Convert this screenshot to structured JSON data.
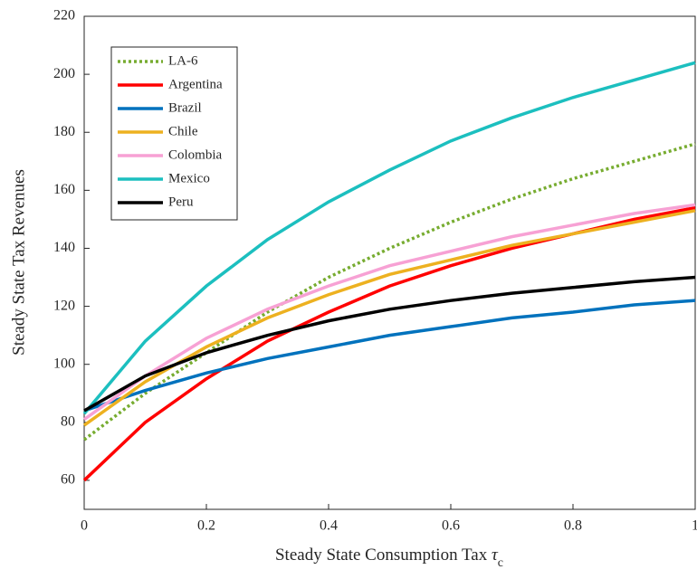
{
  "chart_data": {
    "type": "line",
    "x_label": "Steady State Consumption Tax",
    "x_label_symbol": "τ",
    "x_label_subscript": "c",
    "y_label": "Steady State Tax Revenues",
    "x": [
      0,
      0.1,
      0.2,
      0.3,
      0.4,
      0.5,
      0.6,
      0.7,
      0.8,
      0.9,
      1
    ],
    "xlim": [
      0,
      1
    ],
    "xticks": [
      0,
      0.2,
      0.4,
      0.6,
      0.8,
      1
    ],
    "ylim": [
      50,
      220
    ],
    "yticks": [
      60,
      80,
      100,
      120,
      140,
      160,
      180,
      200,
      220
    ],
    "legend": "upper left",
    "series": [
      {
        "name": "LA-6",
        "color": "#77ac30",
        "style": "dotted",
        "values": [
          74,
          90,
          104,
          118,
          130,
          140,
          149,
          157,
          164,
          170,
          176
        ]
      },
      {
        "name": "Argentina",
        "color": "#ff0000",
        "style": "solid",
        "values": [
          60,
          80,
          95,
          108,
          118,
          127,
          134,
          140,
          145,
          150,
          154
        ]
      },
      {
        "name": "Brazil",
        "color": "#0072bd",
        "style": "solid",
        "values": [
          84,
          91,
          97,
          102,
          106,
          110,
          113,
          116,
          118,
          120.5,
          122
        ]
      },
      {
        "name": "Chile",
        "color": "#edb120",
        "style": "solid",
        "values": [
          79,
          94,
          106,
          116,
          124,
          131,
          136,
          141,
          145,
          149,
          153
        ]
      },
      {
        "name": "Colombia",
        "color": "#f7a1d4",
        "style": "solid",
        "values": [
          81,
          96,
          109,
          119,
          127,
          134,
          139,
          144,
          148,
          152,
          155
        ]
      },
      {
        "name": "Mexico",
        "color": "#1cbfbf",
        "style": "solid",
        "values": [
          83,
          108,
          127,
          143,
          156,
          167,
          177,
          185,
          192,
          198,
          204
        ]
      },
      {
        "name": "Peru",
        "color": "#000000",
        "style": "solid",
        "values": [
          84,
          96,
          104,
          110,
          115,
          119,
          122,
          124.5,
          126.5,
          128.5,
          130
        ]
      }
    ]
  }
}
